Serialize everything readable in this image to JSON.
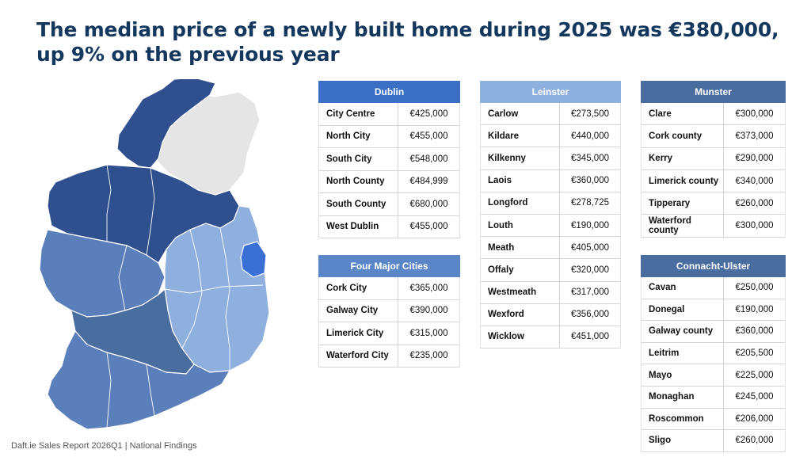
{
  "headline": "The median price of a newly built home during 2025 was €380,000, up 9% on the previous year",
  "footer": "Daft.ie Sales Report 2026Q1  |  National Findings",
  "colors": {
    "title": "#14375e",
    "dublin_header": "#3a6fc5",
    "leinster_header": "#8fb1e0",
    "munster_header": "#4a6da0",
    "cities_header": "#5a86c8",
    "connacht_header": "#4a6da0",
    "map_dark": "#2f4f8f",
    "map_mid": "#5b7fba",
    "map_light": "#8fb0de",
    "map_bright": "#3a6fd6",
    "map_grey": "#e5e5e5"
  },
  "tables": {
    "dublin": {
      "title": "Dublin",
      "rows": [
        {
          "name": "City Centre",
          "value": "€425,000"
        },
        {
          "name": "North City",
          "value": "€455,000"
        },
        {
          "name": "South City",
          "value": "€548,000"
        },
        {
          "name": "North County",
          "value": "€484,999"
        },
        {
          "name": "South County",
          "value": "€680,000"
        },
        {
          "name": "West Dublin",
          "value": "€455,000"
        }
      ]
    },
    "cities": {
      "title": "Four Major Cities",
      "rows": [
        {
          "name": "Cork City",
          "value": "€365,000"
        },
        {
          "name": "Galway City",
          "value": "€390,000"
        },
        {
          "name": "Limerick City",
          "value": "€315,000"
        },
        {
          "name": "Waterford City",
          "value": "€235,000"
        }
      ]
    },
    "leinster": {
      "title": "Leinster",
      "rows": [
        {
          "name": "Carlow",
          "value": "€273,500"
        },
        {
          "name": "Kildare",
          "value": "€440,000"
        },
        {
          "name": "Kilkenny",
          "value": "€345,000"
        },
        {
          "name": "Laois",
          "value": "€360,000"
        },
        {
          "name": "Longford",
          "value": "€278,725"
        },
        {
          "name": "Louth",
          "value": "€190,000"
        },
        {
          "name": "Meath",
          "value": "€405,000"
        },
        {
          "name": "Offaly",
          "value": "€320,000"
        },
        {
          "name": "Westmeath",
          "value": "€317,000"
        },
        {
          "name": "Wexford",
          "value": "€356,000"
        },
        {
          "name": "Wicklow",
          "value": "€451,000"
        }
      ]
    },
    "munster": {
      "title": "Munster",
      "rows": [
        {
          "name": "Clare",
          "value": "€300,000"
        },
        {
          "name": "Cork county",
          "value": "€373,000"
        },
        {
          "name": "Kerry",
          "value": "€290,000"
        },
        {
          "name": "Limerick county",
          "value": "€340,000"
        },
        {
          "name": "Tipperary",
          "value": "€260,000"
        },
        {
          "name": "Waterford county",
          "value": "€300,000"
        }
      ]
    },
    "connacht": {
      "title": "Connacht-Ulster",
      "rows": [
        {
          "name": "Cavan",
          "value": "€250,000"
        },
        {
          "name": "Donegal",
          "value": "€190,000"
        },
        {
          "name": "Galway county",
          "value": "€360,000"
        },
        {
          "name": "Leitrim",
          "value": "€205,500"
        },
        {
          "name": "Mayo",
          "value": "€225,000"
        },
        {
          "name": "Monaghan",
          "value": "€245,000"
        },
        {
          "name": "Roscommon",
          "value": "€206,000"
        },
        {
          "name": "Sligo",
          "value": "€260,000"
        }
      ]
    }
  }
}
